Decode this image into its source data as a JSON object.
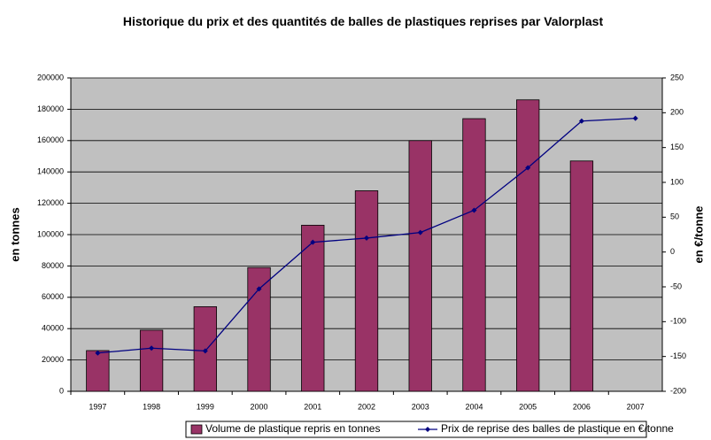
{
  "chart_data": {
    "type": "bar",
    "title": "Historique du prix et des quantités de balles de plastiques reprises par Valorplast",
    "categories": [
      "1997",
      "1998",
      "1999",
      "2000",
      "2001",
      "2002",
      "2003",
      "2004",
      "2005",
      "2006",
      "2007"
    ],
    "series": [
      {
        "name": "Volume de plastique repris en tonnes",
        "color": "#993366",
        "type": "bar",
        "values": [
          26000,
          39000,
          54000,
          79000,
          106000,
          128000,
          160000,
          174000,
          186000,
          147000,
          null
        ]
      },
      {
        "name": "Prix de reprise des balles de plastique en €/tonne",
        "color": "#000080",
        "type": "line",
        "axis": "y2",
        "values": [
          -145,
          -138,
          -142,
          -53,
          14,
          20,
          28,
          60,
          121,
          188,
          192
        ]
      }
    ],
    "ylabel": "en tonnes",
    "y2label": "en €/tonne",
    "ylim": [
      0,
      200000
    ],
    "yticks": [
      0,
      20000,
      40000,
      60000,
      80000,
      100000,
      120000,
      140000,
      160000,
      180000,
      200000
    ],
    "y2lim": [
      -200,
      250
    ],
    "y2ticks": [
      -200,
      -150,
      -100,
      -50,
      0,
      50,
      100,
      150,
      200,
      250
    ],
    "grid": true,
    "legend": "bottom"
  }
}
